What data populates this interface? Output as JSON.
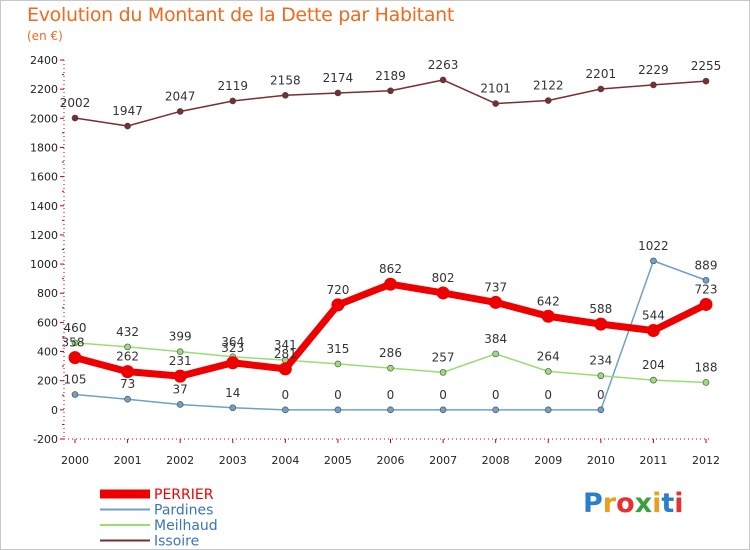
{
  "title": "Evolution du Montant de la Dette par Habitant",
  "unit": "(en €)",
  "logo": {
    "text": "Proxiti",
    "colors": [
      "#2b7fc8",
      "#e8a020",
      "#e83030",
      "#3aa040",
      "#e8a020",
      "#2b7fc8",
      "#e83030"
    ]
  },
  "chart_data": {
    "type": "line",
    "title": "Evolution du Montant de la Dette par Habitant",
    "ylabel": "(en €)",
    "x": [
      "2000",
      "2001",
      "2002",
      "2003",
      "2004",
      "2005",
      "2006",
      "2007",
      "2008",
      "2009",
      "2010",
      "2011",
      "2012"
    ],
    "ylim": [
      -200,
      2400
    ],
    "yticks": [
      -200,
      0,
      200,
      400,
      600,
      800,
      1000,
      1200,
      1400,
      1600,
      1800,
      2000,
      2200,
      2400
    ],
    "grid": false,
    "legend_position": "bottom-left",
    "series": [
      {
        "name": "PERRIER",
        "color": "#ee0000",
        "values": [
          358,
          262,
          231,
          323,
          281,
          720,
          862,
          802,
          737,
          642,
          588,
          544,
          723
        ]
      },
      {
        "name": "Pardines",
        "color": "#6fa0cc",
        "values": [
          105,
          73,
          37,
          14,
          0,
          0,
          0,
          0,
          0,
          0,
          0,
          1022,
          889
        ]
      },
      {
        "name": "Meilhaud",
        "color": "#99dd77",
        "values": [
          460,
          432,
          399,
          364,
          341,
          315,
          286,
          257,
          384,
          264,
          234,
          204,
          188
        ]
      },
      {
        "name": "Issoire",
        "color": "#7a2e2e",
        "values": [
          2002,
          1947,
          2047,
          2119,
          2158,
          2174,
          2189,
          2263,
          2101,
          2122,
          2201,
          2229,
          2255
        ]
      }
    ]
  }
}
